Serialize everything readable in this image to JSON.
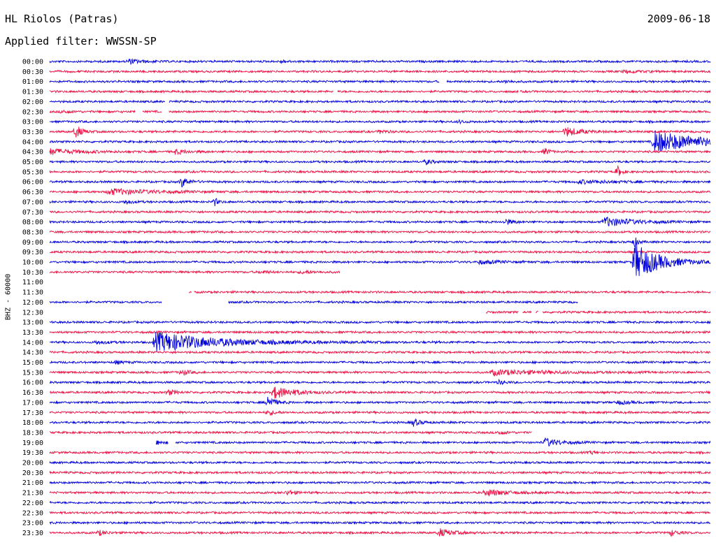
{
  "header": {
    "station": "HL Riolos (Patras)",
    "date": "2009-06-18",
    "filter": "Applied filter: WWSSN-SP"
  },
  "chart_data": {
    "type": "line",
    "title": "HL Riolos (Patras)",
    "subtitle": "Applied filter: WWSSN-SP",
    "ylabel": "BHZ - 60000",
    "xlabel": "",
    "row_colors": [
      "#0000dd",
      "#ee1144"
    ],
    "rows": [
      {
        "label": "00:00",
        "events": [
          [
            0.12,
            0.5,
            0.02
          ],
          [
            0.35,
            0.3,
            0.01
          ]
        ]
      },
      {
        "label": "00:30",
        "events": [
          [
            0.87,
            0.35,
            0.02
          ]
        ]
      },
      {
        "label": "01:00",
        "events": [
          [
            0.69,
            0.3,
            0.01
          ]
        ],
        "gaps": [
          [
            0.59,
            0.6
          ]
        ]
      },
      {
        "label": "01:30",
        "events": [],
        "gaps": [
          [
            0.43,
            0.435
          ],
          [
            0.71,
            0.712
          ]
        ]
      },
      {
        "label": "02:00",
        "events": [],
        "gaps": [
          [
            0.175,
            0.18
          ]
        ]
      },
      {
        "label": "02:30",
        "events": [
          [
            0.02,
            0.4,
            0.01
          ]
        ],
        "gaps": [
          [
            0.13,
            0.14
          ],
          [
            0.17,
            0.18
          ]
        ]
      },
      {
        "label": "03:00",
        "events": [
          [
            0.62,
            0.3,
            0.01
          ]
        ]
      },
      {
        "label": "03:30",
        "events": [
          [
            0.04,
            1.6,
            0.008
          ],
          [
            0.78,
            1.2,
            0.02
          ],
          [
            0.5,
            0.4,
            0.01
          ]
        ]
      },
      {
        "label": "04:00",
        "events": [
          [
            0.915,
            2.6,
            0.07
          ]
        ]
      },
      {
        "label": "04:30",
        "events": [
          [
            0.0,
            0.7,
            0.04
          ],
          [
            0.19,
            0.5,
            0.02
          ],
          [
            0.75,
            1.0,
            0.005
          ]
        ]
      },
      {
        "label": "05:00",
        "events": [
          [
            0.57,
            0.5,
            0.01
          ]
        ]
      },
      {
        "label": "05:30",
        "events": [
          [
            0.86,
            1.3,
            0.005
          ]
        ]
      },
      {
        "label": "06:00",
        "events": [
          [
            0.2,
            1.2,
            0.01
          ],
          [
            0.8,
            0.4,
            0.05
          ]
        ]
      },
      {
        "label": "06:30",
        "events": [
          [
            0.09,
            0.7,
            0.06
          ]
        ]
      },
      {
        "label": "07:00",
        "events": [
          [
            0.115,
            0.5,
            0.01
          ],
          [
            0.25,
            0.9,
            0.005
          ]
        ]
      },
      {
        "label": "07:30",
        "events": []
      },
      {
        "label": "08:00",
        "events": [
          [
            0.84,
            1.1,
            0.04
          ],
          [
            0.69,
            0.7,
            0.01
          ]
        ]
      },
      {
        "label": "08:30",
        "events": []
      },
      {
        "label": "09:00",
        "events": [
          [
            0.885,
            1.2,
            0.005
          ]
        ]
      },
      {
        "label": "09:30",
        "events": [],
        "gaps": []
      },
      {
        "label": "10:00",
        "events": [
          [
            0.885,
            4.5,
            0.035
          ],
          [
            0.65,
            0.4,
            0.03
          ]
        ]
      },
      {
        "label": "10:30",
        "events": [
          [
            0.32,
            0.4,
            0.01
          ],
          [
            0.38,
            0.3,
            0.02
          ]
        ],
        "gaps": [
          [
            0.44,
            1.0
          ]
        ]
      },
      {
        "label": "11:00",
        "events": [],
        "gaps": [
          [
            0.0,
            1.0
          ]
        ]
      },
      {
        "label": "11:30",
        "events": [
          [
            0.13,
            0.4,
            0.005
          ]
        ],
        "gaps": [
          [
            0.0,
            0.21
          ],
          [
            0.215,
            0.218
          ]
        ]
      },
      {
        "label": "12:00",
        "events": [],
        "gaps": [
          [
            0.17,
            0.27
          ],
          [
            0.8,
            1.0
          ]
        ]
      },
      {
        "label": "12:30",
        "events": [],
        "gaps": [
          [
            0.0,
            0.66
          ],
          [
            0.71,
            0.715
          ],
          [
            0.73,
            0.735
          ],
          [
            0.74,
            0.745
          ]
        ]
      },
      {
        "label": "13:00",
        "events": []
      },
      {
        "label": "13:30",
        "events": []
      },
      {
        "label": "14:00",
        "events": [
          [
            0.16,
            2.3,
            0.09
          ],
          [
            0.07,
            0.4,
            0.02
          ]
        ]
      },
      {
        "label": "14:30",
        "events": []
      },
      {
        "label": "15:00",
        "events": [
          [
            0.1,
            0.4,
            0.01
          ]
        ]
      },
      {
        "label": "15:30",
        "events": [
          [
            0.2,
            0.7,
            0.01
          ],
          [
            0.67,
            0.6,
            0.08
          ]
        ]
      },
      {
        "label": "16:00",
        "events": [
          [
            0.68,
            0.4,
            0.01
          ]
        ]
      },
      {
        "label": "16:30",
        "events": [
          [
            0.18,
            0.6,
            0.01
          ],
          [
            0.34,
            1.4,
            0.03
          ]
        ]
      },
      {
        "label": "17:00",
        "events": [
          [
            0.33,
            1.6,
            0.01
          ],
          [
            0.86,
            0.4,
            0.02
          ]
        ]
      },
      {
        "label": "17:30",
        "events": [
          [
            0.33,
            0.6,
            0.01
          ]
        ]
      },
      {
        "label": "18:00",
        "events": [
          [
            0.55,
            0.9,
            0.01
          ]
        ]
      },
      {
        "label": "18:30",
        "events": [
          [
            0.68,
            0.5,
            0.01
          ]
        ],
        "gaps": [
          [
            0.73,
            1.0
          ]
        ]
      },
      {
        "label": "19:00",
        "events": [
          [
            0.75,
            1.0,
            0.02
          ],
          [
            0.16,
            0.5,
            0.01
          ]
        ],
        "gaps": [
          [
            0.0,
            0.16
          ],
          [
            0.18,
            0.19
          ]
        ]
      },
      {
        "label": "19:30",
        "events": [
          [
            0.82,
            0.4,
            0.005
          ]
        ]
      },
      {
        "label": "20:00",
        "events": []
      },
      {
        "label": "20:30",
        "events": []
      },
      {
        "label": "21:00",
        "events": []
      },
      {
        "label": "21:30",
        "events": [
          [
            0.36,
            0.6,
            0.01
          ],
          [
            0.66,
            0.8,
            0.03
          ]
        ]
      },
      {
        "label": "22:00",
        "events": []
      },
      {
        "label": "22:30",
        "events": []
      },
      {
        "label": "23:00",
        "events": []
      },
      {
        "label": "23:30",
        "events": [
          [
            0.075,
            0.6,
            0.01
          ],
          [
            0.59,
            0.9,
            0.02
          ],
          [
            0.94,
            0.7,
            0.01
          ]
        ]
      }
    ]
  }
}
